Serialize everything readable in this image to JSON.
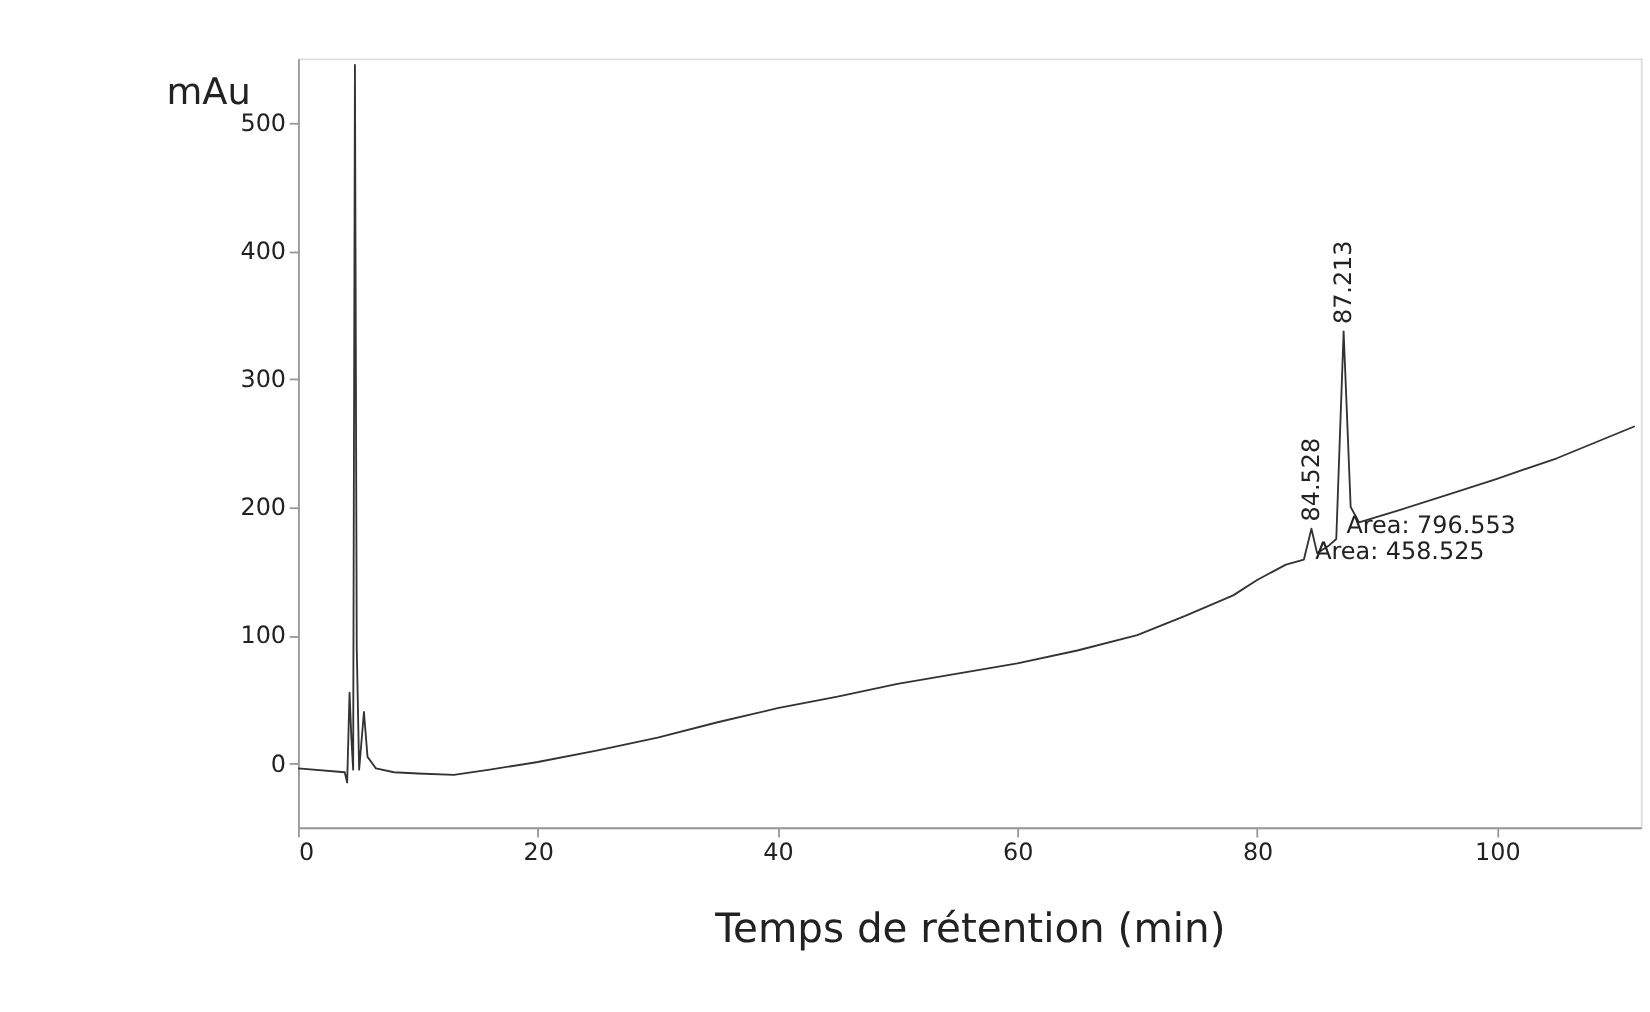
{
  "chart_data": {
    "type": "line",
    "xlabel": "Temps de rétention (min)",
    "ylabel": "mAu",
    "xlim": [
      0,
      112
    ],
    "xticks": [
      0,
      20,
      40,
      60,
      80,
      100
    ],
    "ylim": [
      -50,
      550
    ],
    "yticks": [
      0,
      100,
      200,
      300,
      400,
      500
    ],
    "grid": false,
    "marker": "none",
    "line_style": "solid",
    "x": [
      0,
      3.9,
      4.1,
      4.3,
      4.45,
      4.6,
      4.75,
      4.9,
      5.1,
      5.5,
      5.8,
      6.5,
      8,
      10,
      13,
      16,
      20,
      25,
      30,
      35,
      40,
      45,
      50,
      55,
      60,
      65,
      70,
      74,
      78,
      80,
      82.4,
      83.9,
      84.528,
      85.0,
      86,
      86.6,
      87.213,
      87.8,
      88.5,
      92,
      96.7,
      100,
      105,
      111.5
    ],
    "series": [
      {
        "color": "#333333",
        "values": [
          -4,
          -7,
          -15,
          55,
          20,
          -5,
          545,
          90,
          -5,
          40,
          5,
          -4,
          -7,
          -8,
          -9,
          -5,
          1,
          10,
          20,
          32,
          43,
          52,
          62,
          70,
          78,
          88,
          100,
          115,
          131,
          143,
          155,
          159,
          183,
          164,
          170,
          175,
          337,
          200,
          188,
          198,
          212,
          222,
          238,
          263
        ]
      }
    ],
    "annotations": [
      {
        "text": "87.213",
        "x": 87.213,
        "y": 337
      },
      {
        "text": "84.528",
        "x": 84.528,
        "y": 183
      },
      "Area: 796.553",
      "Area: 458.525"
    ]
  }
}
